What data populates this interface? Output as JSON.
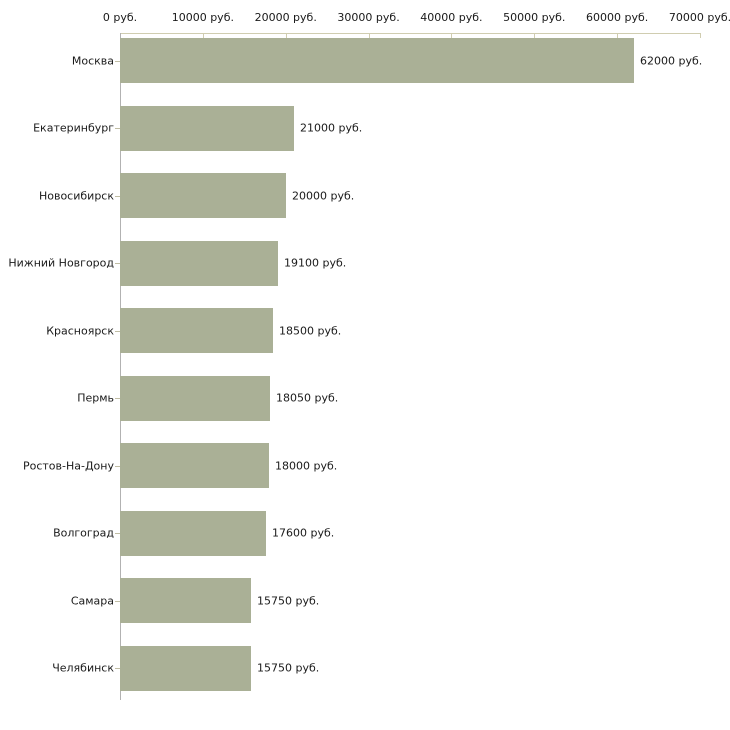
{
  "chart_data": {
    "type": "bar",
    "orientation": "horizontal",
    "title": "",
    "xlabel": "",
    "ylabel": "",
    "categories": [
      "Москва",
      "Екатеринбург",
      "Новосибирск",
      "Нижний Новгород",
      "Красноярск",
      "Пермь",
      "Ростов-На-Дону",
      "Волгоград",
      "Самара",
      "Челябинск"
    ],
    "values": [
      62000,
      21000,
      20000,
      19100,
      18500,
      18050,
      18000,
      17600,
      15750,
      15750
    ],
    "value_labels": [
      "62000 руб.",
      "21000 руб.",
      "20000 руб.",
      "19100 руб.",
      "18500 руб.",
      "18050 руб.",
      "18000 руб.",
      "17600 руб.",
      "15750 руб.",
      "15750 руб."
    ],
    "x_ticks": [
      0,
      10000,
      20000,
      30000,
      40000,
      50000,
      60000,
      70000
    ],
    "x_tick_labels": [
      "0 руб.",
      "10000 руб.",
      "20000 руб.",
      "30000 руб.",
      "40000 руб.",
      "50000 руб.",
      "60000 руб.",
      "70000 руб."
    ],
    "xlim": [
      0,
      70000
    ],
    "grid": false,
    "legend": false,
    "colors": {
      "bar_fill": "#aab096",
      "x_axis_line": "#d0cdb0",
      "x_tick_mark": "#d0cdb0",
      "y_axis_line": "#b2b2b2",
      "category_tick": "#c0bda4",
      "text": "#1a1a1a",
      "background": "#ffffff"
    }
  }
}
